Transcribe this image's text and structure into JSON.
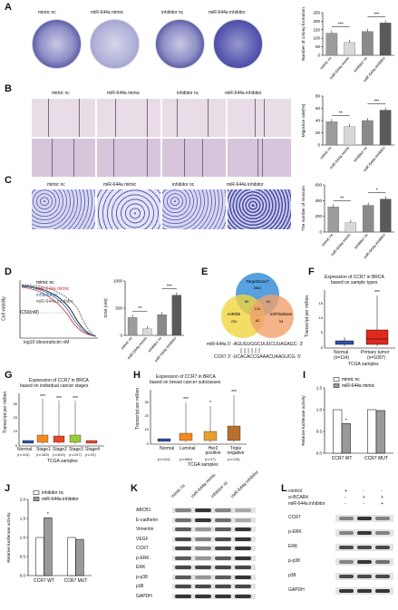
{
  "panels": {
    "A": {
      "letter": "A",
      "columns": [
        "mimic nc",
        "miR-644a mimic",
        "inhibitor nc",
        "miR-644a inhibitor"
      ],
      "ylabel": "Number of colony formation"
    },
    "B": {
      "letter": "B",
      "columns": [
        "mimic nc",
        "miR-644a mimic",
        "inhibitor nc",
        "miR-644a inhibitor"
      ],
      "ylabel": "Migration rate(%)"
    },
    "C": {
      "letter": "C",
      "columns": [
        "mimic nc",
        "miR-644a mimic",
        "inhibitor nc",
        "miR-644a inhibitor"
      ],
      "ylabel": "The number of invasion"
    },
    "D": {
      "letter": "D",
      "legend": [
        "mimic nc",
        "miR-644a mimic",
        "inhibitor nc",
        "miR-644a inhibitor"
      ],
      "ic50": "IC50(nM)",
      "xlabel": "log10  \\doxorubicin\\  nM",
      "ylabel": "Cell viability",
      "bar_ylabel": "IC50 (nM)"
    },
    "E": {
      "letter": "E",
      "sets": [
        "TargetScan7",
        "miRDB",
        "miRTarBase"
      ],
      "counts": [
        "3662",
        "59",
        "61",
        "124",
        "62",
        "200",
        "53"
      ],
      "mir_line": "miR-644a  5'  -AGUGUGGCUUUCUUAGAGC-  3'",
      "ccr7_line": "CCR7  3'  -UCACACCGAAACUAAGUCG-  5'"
    },
    "F": {
      "letter": "F",
      "title1": "Expression of CCR7 in BRCA",
      "title2": "based on sample types",
      "ylabel": "Transcript per million",
      "xlabel": "TCGA samples",
      "groups": [
        "Normal",
        "Primary tumor"
      ],
      "ns": [
        "(n=114)",
        "(n=1097)"
      ],
      "sig": "***"
    },
    "G": {
      "letter": "G",
      "title1": "Expression of CCR7 in BRCA",
      "title2": "based on individual cancer stages",
      "ylabel": "Transcript per million",
      "xlabel": "TCGA samples",
      "groups": [
        "Normal",
        "Stage1",
        "Stage2",
        "Stage3",
        "Stage4"
      ],
      "ns": [
        "(n=114)",
        "(n=183)",
        "(n=615)",
        "(n=247)",
        "(n=20)"
      ]
    },
    "H": {
      "letter": "H",
      "title1": "Expression of CCR7 in BRCA",
      "title2": "based on breast cancer subclasses",
      "ylabel": "Transcript per million",
      "xlabel": "TCGA samples",
      "groups": [
        "Normal",
        "Luminal",
        "Her2 positive",
        "Triple negative"
      ],
      "ns": [
        "(n=114)",
        "(n=566)",
        "(n=37)",
        "(n=116)"
      ]
    },
    "I": {
      "letter": "I",
      "legend": [
        "mimic nc",
        "miR-644a mimic"
      ],
      "ylabel": "Relative luciferase activity",
      "groups": [
        "CCR7 WT",
        "CCR7 MUT"
      ]
    },
    "J": {
      "letter": "J",
      "legend": [
        "inhibitor nc",
        "miR-644a inhibitor"
      ],
      "ylabel": "Relative luciferase activity",
      "groups": [
        "CCR7 WT",
        "CCR7 MUT"
      ]
    },
    "K": {
      "letter": "K",
      "columns": [
        "mimic nc",
        "miR-644a mimic",
        "inhibitor nc",
        "miR-644a inhibitor"
      ],
      "rows": [
        "ABCB1",
        "E-cadherin",
        "Vimentin",
        "VEGF",
        "CCR7",
        "p-ERK",
        "ERK",
        "p-p38",
        "p38",
        "GAPDH"
      ]
    },
    "L": {
      "letter": "L",
      "conditions": [
        "control",
        "si-BCAR4",
        "miR-644a inhibitor"
      ],
      "signs": [
        [
          "+",
          "-",
          "-"
        ],
        [
          "-",
          "+",
          "+"
        ],
        [
          "-",
          "-",
          "+"
        ]
      ],
      "rows": [
        "CCR7",
        "p-ERK",
        "ERK",
        "p-p38",
        "p38",
        "GAPDH"
      ]
    }
  },
  "chart_data": [
    {
      "type": "bar",
      "panel": "A",
      "categories": [
        "mimic nc",
        "miR-644a mimic",
        "inhibitor nc",
        "miR-644a inhibitor"
      ],
      "values": [
        130,
        75,
        140,
        190
      ],
      "ylim": [
        0,
        250
      ],
      "ticks": [
        "0",
        "50",
        "100",
        "150",
        "200",
        "250"
      ],
      "significance": [
        "***",
        "***"
      ]
    },
    {
      "type": "bar",
      "panel": "B",
      "categories": [
        "mimic nc",
        "miR-644a mimic",
        "inhibitor nc",
        "miR-644a inhibitor"
      ],
      "values": [
        38,
        30,
        40,
        57
      ],
      "ylim": [
        0,
        80
      ],
      "ticks": [
        "0",
        "20",
        "40",
        "60",
        "80"
      ],
      "significance": [
        "**",
        "***"
      ]
    },
    {
      "type": "bar",
      "panel": "C",
      "categories": [
        "mimic nc",
        "miR-644a mimic",
        "inhibitor nc",
        "miR-644a inhibitor"
      ],
      "values": [
        320,
        120,
        340,
        420
      ],
      "ylim": [
        0,
        600
      ],
      "ticks": [
        "0",
        "200",
        "400",
        "600"
      ],
      "significance": [
        "**",
        "*"
      ]
    },
    {
      "type": "bar",
      "panel": "D",
      "categories": [
        "mimic nc",
        "miR-644a mimic",
        "inhibitor nc",
        "miR-644a inhibitor"
      ],
      "values": [
        330,
        120,
        380,
        740
      ],
      "ylim": [
        0,
        1000
      ],
      "ticks": [
        "0",
        "500",
        "1000"
      ],
      "significance": [
        "**",
        "***"
      ]
    },
    {
      "type": "bar",
      "panel": "I",
      "categories": [
        "CCR7 WT",
        "CCR7 MUT"
      ],
      "series": [
        {
          "name": "mimic nc",
          "values": [
            1.0,
            1.0
          ]
        },
        {
          "name": "miR-644a mimic",
          "values": [
            0.68,
            0.98
          ]
        }
      ],
      "ylim": [
        0,
        1.5
      ],
      "ticks": [
        "0.0",
        "0.5",
        "1.0",
        "1.5"
      ],
      "significance": [
        "*"
      ]
    },
    {
      "type": "bar",
      "panel": "J",
      "categories": [
        "CCR7 WT",
        "CCR7 MUT"
      ],
      "series": [
        {
          "name": "inhibitor nc",
          "values": [
            1.0,
            1.0
          ]
        },
        {
          "name": "miR-644a inhibitor",
          "values": [
            1.52,
            0.95
          ]
        }
      ],
      "ylim": [
        0,
        2.0
      ],
      "ticks": [
        "0.0",
        "0.5",
        "1.0",
        "1.5",
        "2.0"
      ],
      "significance": [
        "*"
      ]
    }
  ]
}
